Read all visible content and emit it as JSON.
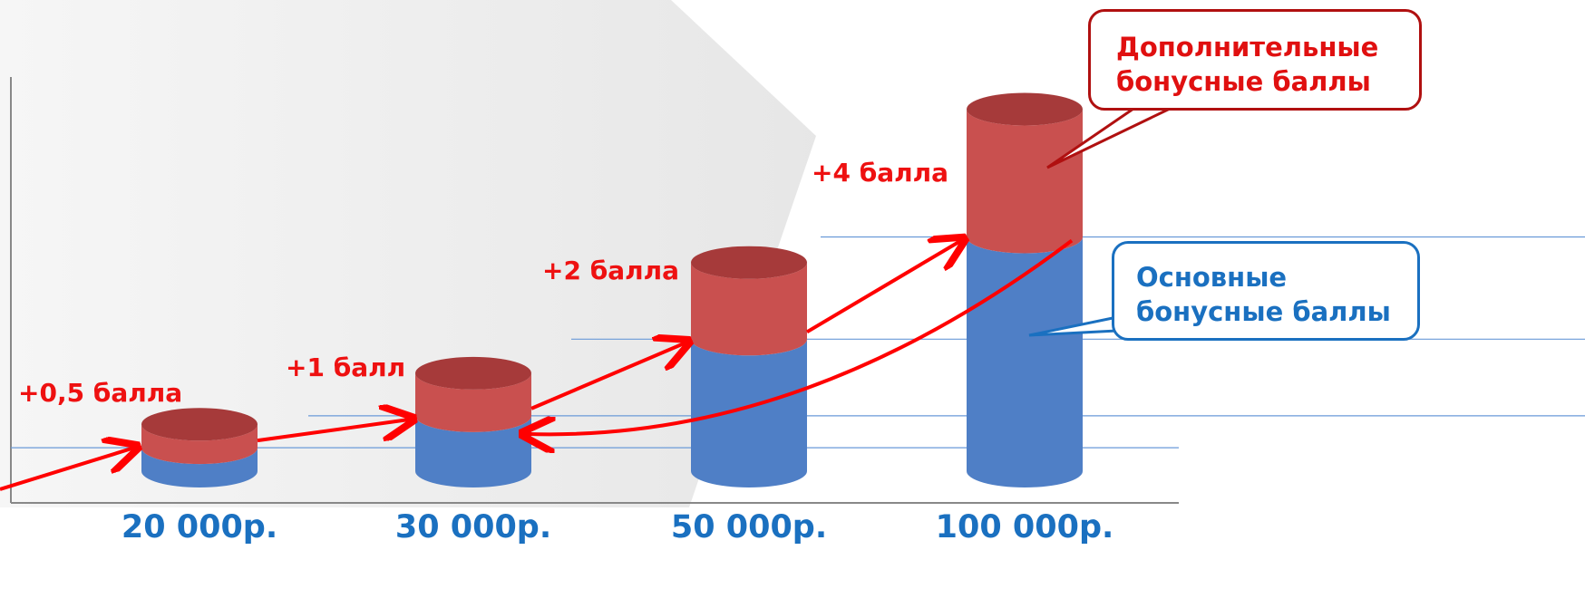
{
  "chart_data": {
    "type": "bar",
    "categories": [
      "20 000р.",
      "30 000р.",
      "50 000р.",
      "100 000р."
    ],
    "series": [
      {
        "name": "Основные бонусные баллы",
        "color": "#4f7fc6",
        "values": [
          5.5,
          13,
          31,
          55
        ]
      },
      {
        "name": "Дополнительные бонусные баллы",
        "color": "#c9504f",
        "values": [
          5.5,
          10,
          18,
          30
        ]
      }
    ],
    "annotations": [
      "+0,5 балла",
      "+1 балл",
      "+2 балла",
      "+4 балла"
    ],
    "ylim": [
      0,
      100
    ]
  }
}
